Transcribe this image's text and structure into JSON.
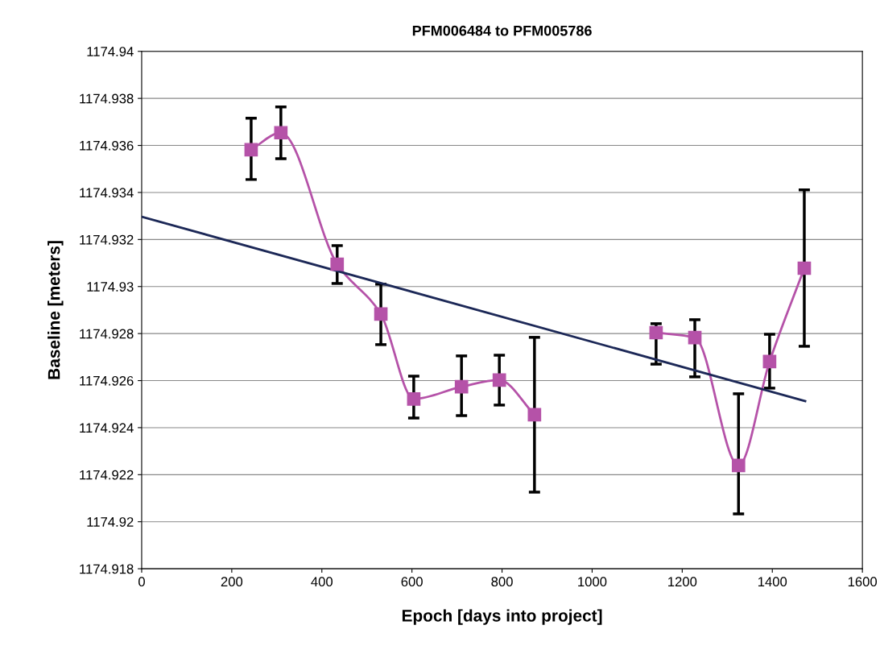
{
  "chart_data": {
    "type": "line",
    "title": "PFM006484 to PFM005786",
    "xlabel": "Epoch [days into project]",
    "ylabel": "Baseline [meters]",
    "xlim": [
      0,
      1600
    ],
    "xticks": [
      0,
      200,
      400,
      600,
      800,
      1000,
      1200,
      1400,
      1600
    ],
    "ylim": [
      1174.918,
      1174.94
    ],
    "yticks": [
      1174.918,
      1174.92,
      1174.922,
      1174.924,
      1174.926,
      1174.928,
      1174.93,
      1174.932,
      1174.934,
      1174.936,
      1174.938,
      1174.94
    ],
    "grid": "y",
    "legend": false,
    "series": [
      {
        "color": "#b552a8",
        "marker": "square",
        "line_style": "solid",
        "x": [
          243,
          309,
          434,
          531,
          604,
          710,
          794,
          872
        ],
        "values": [
          1174.93582,
          1174.93654,
          1174.93095,
          1174.92883,
          1174.92522,
          1174.92574,
          1174.92602,
          1174.92455
        ],
        "errors": [
          [
            1174.93455,
            1174.93716
          ],
          [
            1174.93544,
            1174.93764
          ],
          [
            1174.93013,
            1174.93174
          ],
          [
            1174.92753,
            1174.9301
          ],
          [
            1174.92441,
            1174.92619
          ],
          [
            1174.92451,
            1174.92705
          ],
          [
            1174.92496,
            1174.92708
          ],
          [
            1174.92126,
            1174.92784
          ]
        ]
      },
      {
        "color": "#b552a8",
        "marker": "square",
        "line_style": "solid",
        "x": [
          1142,
          1228,
          1325,
          1394,
          1471
        ],
        "values": [
          1174.92804,
          1174.92783,
          1174.92239,
          1174.92681,
          1174.93078
        ],
        "errors": [
          [
            1174.9267,
            1174.92842
          ],
          [
            1174.92616,
            1174.92859
          ],
          [
            1174.92033,
            1174.92544
          ],
          [
            1174.92568,
            1174.92797
          ],
          [
            1174.92746,
            1174.93411
          ]
        ]
      },
      {
        "color": "#1c2857",
        "marker": "none",
        "line_style": "solid",
        "x": [
          0,
          1473
        ],
        "values": [
          1174.93297,
          1174.92513
        ]
      }
    ]
  }
}
